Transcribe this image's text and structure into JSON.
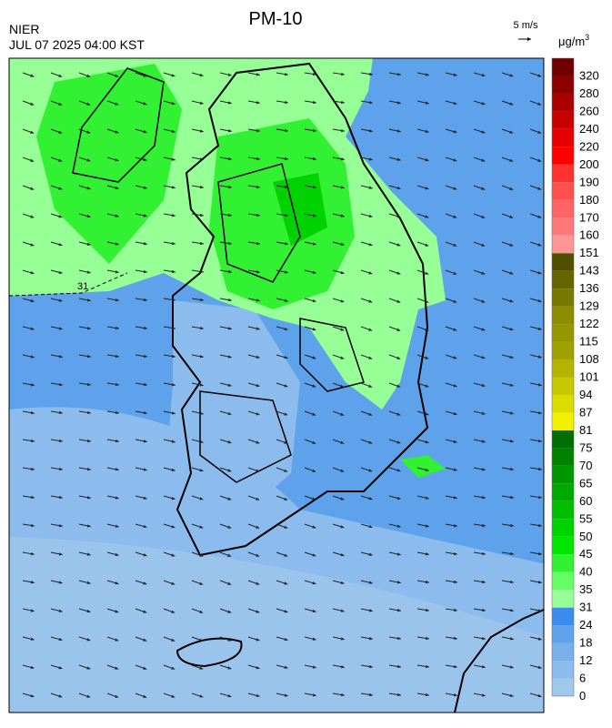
{
  "header": {
    "title": "PM-10",
    "agency": "NIER",
    "timestamp": "JUL 07 2025 04:00 KST",
    "wind_scale": "5 m/s",
    "unit": {
      "base": "μg/m",
      "exp": "3"
    }
  },
  "map": {
    "contour_label": "31"
  },
  "colorbar": {
    "levels": [
      0,
      6,
      12,
      18,
      24,
      31,
      35,
      40,
      45,
      50,
      55,
      60,
      65,
      70,
      75,
      81,
      87,
      94,
      101,
      108,
      115,
      122,
      129,
      136,
      143,
      151,
      160,
      170,
      180,
      190,
      200,
      220,
      240,
      260,
      280,
      320
    ],
    "colors": [
      "#a0c8ea",
      "#8cbced",
      "#78b0ec",
      "#5ea2ec",
      "#3c8cf0",
      "#96ff96",
      "#64ff64",
      "#32f032",
      "#00e600",
      "#00d200",
      "#00be00",
      "#00aa00",
      "#009600",
      "#008200",
      "#006e00",
      "#f0f000",
      "#dcdc00",
      "#c8c800",
      "#b4b400",
      "#a0a000",
      "#969600",
      "#8c8c00",
      "#787800",
      "#646400",
      "#505000",
      "#ff9696",
      "#ff7878",
      "#ff6464",
      "#ff5050",
      "#ff3232",
      "#ff0000",
      "#e60000",
      "#c80000",
      "#aa0000",
      "#8c0000",
      "#6e0000"
    ]
  }
}
